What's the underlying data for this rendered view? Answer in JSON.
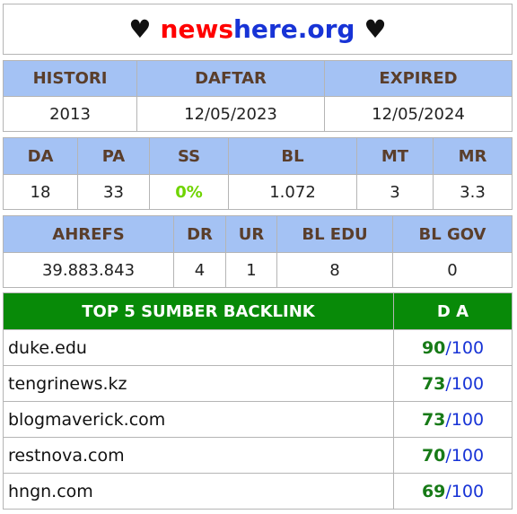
{
  "title": {
    "heart_left": "♥",
    "part_red": "news",
    "part_blue": "here.org",
    "heart_right": "♥"
  },
  "table1": {
    "headers": [
      "HISTORI",
      "DAFTAR",
      "EXPIRED"
    ],
    "values": [
      "2013",
      "12/05/2023",
      "12/05/2024"
    ]
  },
  "table2": {
    "headers": [
      "DA",
      "PA",
      "SS",
      "BL",
      "MT",
      "MR"
    ],
    "values": [
      "18",
      "33",
      "0%",
      "1.072",
      "3",
      "3.3"
    ],
    "ss_color": "#6fd400"
  },
  "table3": {
    "headers": [
      "AHREFS",
      "DR",
      "UR",
      "BL EDU",
      "BL GOV"
    ],
    "values": [
      "39.883.843",
      "4",
      "1",
      "8",
      "0"
    ]
  },
  "top5": {
    "header_left": "TOP 5 SUMBER BACKLINK",
    "header_right": "D A",
    "header_color": "#088a08",
    "sep": "/",
    "max": "100",
    "rows": [
      {
        "site": "duke.edu",
        "da": "90"
      },
      {
        "site": "tengrinews.kz",
        "da": "73"
      },
      {
        "site": "blogmaverick.com",
        "da": "73"
      },
      {
        "site": "restnova.com",
        "da": "70"
      },
      {
        "site": "hngn.com",
        "da": "69"
      }
    ]
  }
}
